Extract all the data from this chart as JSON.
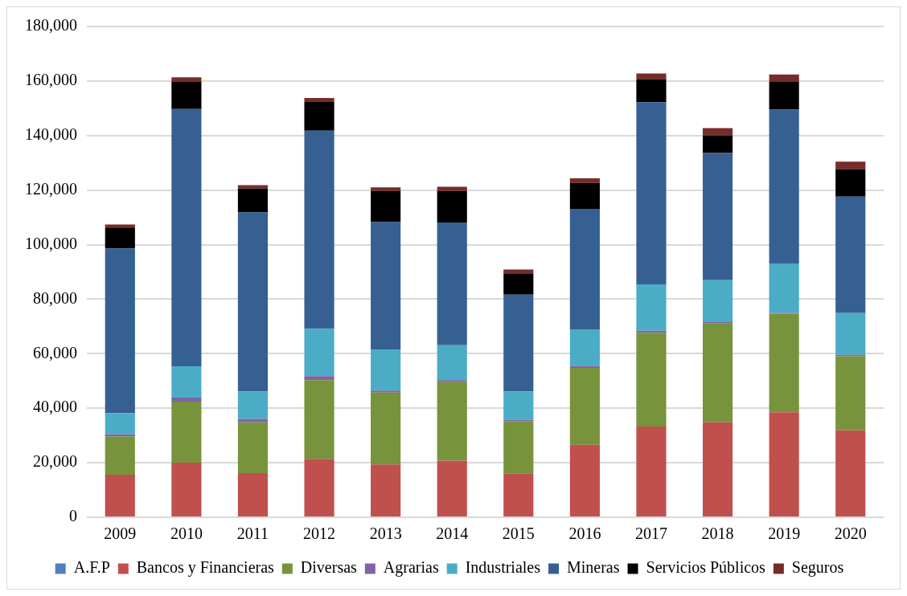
{
  "chart_data": {
    "type": "bar",
    "stacked": true,
    "categories": [
      "2009",
      "2010",
      "2011",
      "2012",
      "2013",
      "2014",
      "2015",
      "2016",
      "2017",
      "2018",
      "2019",
      "2020"
    ],
    "series": [
      {
        "name": "A.F.P",
        "color": "#4f81bd",
        "values": [
          null,
          null,
          null,
          null,
          null,
          null,
          null,
          null,
          null,
          null,
          null,
          null
        ]
      },
      {
        "name": "Bancos y Financieras",
        "color": "#c0504d",
        "values": [
          15600,
          20000,
          16200,
          21400,
          19400,
          20800,
          16100,
          26600,
          33300,
          34800,
          38500,
          31900
        ]
      },
      {
        "name": "Diversas",
        "color": "#77933c",
        "values": [
          14000,
          22400,
          18600,
          28900,
          26300,
          28800,
          19200,
          28200,
          34400,
          36300,
          36200,
          27200
        ]
      },
      {
        "name": "Agrarias",
        "color": "#8064a2",
        "values": [
          800,
          1500,
          1300,
          1500,
          800,
          700,
          500,
          700,
          700,
          500,
          300,
          500
        ]
      },
      {
        "name": "Industriales",
        "color": "#4bacc6",
        "values": [
          7800,
          11500,
          10100,
          17300,
          15100,
          12800,
          10400,
          13400,
          17000,
          15400,
          18100,
          15300
        ]
      },
      {
        "name": "Mineras",
        "color": "#366092",
        "values": [
          60400,
          94300,
          65700,
          72700,
          46700,
          45000,
          35500,
          44200,
          66800,
          46600,
          56400,
          42700
        ]
      },
      {
        "name": "Servicios Públicos",
        "color": "#000000",
        "values": [
          7700,
          10000,
          8700,
          10500,
          11400,
          11600,
          7600,
          9500,
          8500,
          6500,
          10200,
          10100
        ]
      },
      {
        "name": "Seguros",
        "color": "#772c2a",
        "values": [
          1100,
          1700,
          1200,
          1500,
          1300,
          1500,
          1600,
          1700,
          2100,
          2600,
          2700,
          2700
        ]
      }
    ],
    "ylim": [
      0,
      180000
    ],
    "yticks": [
      0,
      {
        "value": 20000,
        "label": "20,000"
      },
      {
        "value": 40000,
        "label": "40,000"
      },
      {
        "value": 60000,
        "label": "60,000"
      },
      {
        "value": 80000,
        "label": "80,000"
      },
      {
        "value": 100000,
        "label": "100,000"
      },
      {
        "value": 120000,
        "label": "120,000"
      },
      {
        "value": 140000,
        "label": "140,000"
      },
      {
        "value": 160000,
        "label": "160,000"
      },
      {
        "value": 180000,
        "label": "180,000"
      }
    ],
    "grid": "y",
    "legend": "bottom"
  }
}
